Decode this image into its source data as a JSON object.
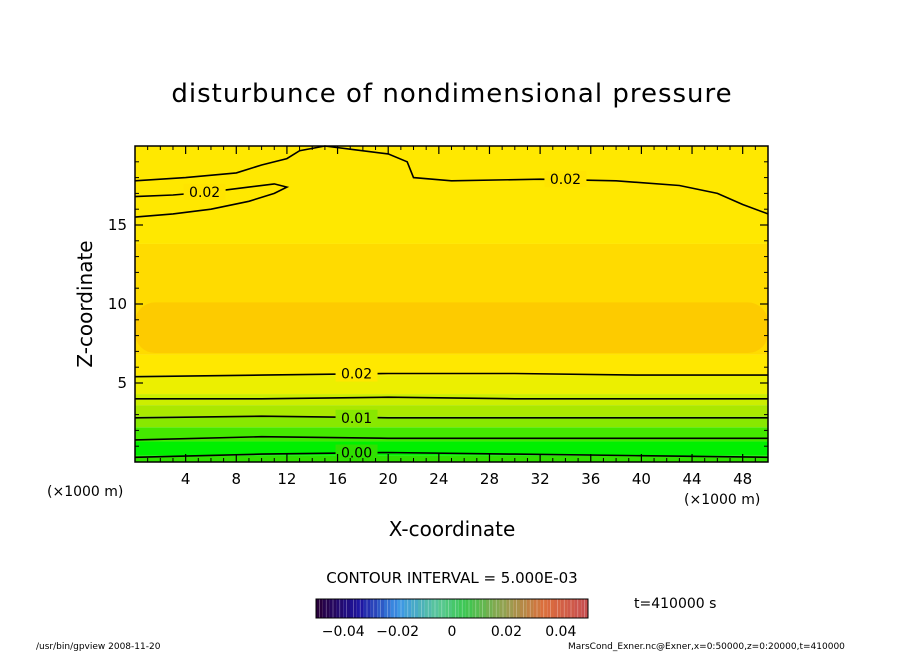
{
  "chart_data": {
    "type": "heatmap",
    "title": "disturbunce of nondimensional pressure",
    "xlabel": "X-coordinate",
    "ylabel": "Z-coordinate",
    "x_unit": "(×1000 m)",
    "y_unit": "(×1000 m)",
    "xlim": [
      0,
      50
    ],
    "ylim": [
      0,
      20
    ],
    "x_ticks": [
      4,
      8,
      12,
      16,
      20,
      24,
      28,
      32,
      36,
      40,
      44,
      48
    ],
    "y_ticks": [
      5,
      10,
      15
    ],
    "grid": false,
    "contour_interval_label": "CONTOUR INTERVAL = 5.000E-03",
    "time_label": "t=410000 s",
    "colorbar": {
      "ticks": [
        -0.04,
        -0.02,
        0,
        0.02,
        0.04
      ],
      "tick_labels": [
        "−0.04",
        "−0.02",
        "0",
        "0.02",
        "0.04"
      ]
    },
    "bands": [
      {
        "z_from": 0,
        "z_to": 0.4,
        "color": "#2fe000"
      },
      {
        "z_from": 0.4,
        "z_to": 1.3,
        "color": "#00f000"
      },
      {
        "z_from": 1.3,
        "z_to": 2.2,
        "color": "#44e800"
      },
      {
        "z_from": 2.2,
        "z_to": 2.9,
        "color": "#88e800"
      },
      {
        "z_from": 2.9,
        "z_to": 3.6,
        "color": "#aae800"
      },
      {
        "z_from": 3.6,
        "z_to": 4.3,
        "color": "#ccee00"
      },
      {
        "z_from": 4.3,
        "z_to": 5.5,
        "color": "#ecef00"
      },
      {
        "z_from": 5.5,
        "z_to": 6.8,
        "color": "#ffe800"
      },
      {
        "z_from": 6.8,
        "z_to": 13.8,
        "color": "#ffdb00"
      },
      {
        "z_from": 13.8,
        "z_to": 20,
        "color": "#ffe800"
      }
    ],
    "core_region": {
      "z_from": 6.9,
      "z_to": 10.1,
      "color": "#fdcb00"
    },
    "contours": [
      {
        "label": "0.02",
        "points": [
          [
            0,
            17.8
          ],
          [
            4,
            18.0
          ],
          [
            8,
            18.3
          ],
          [
            10,
            18.8
          ],
          [
            12,
            19.2
          ],
          [
            13,
            19.7
          ],
          [
            15,
            20.0
          ],
          [
            17,
            19.8
          ],
          [
            20,
            19.5
          ],
          [
            21.5,
            19.0
          ],
          [
            22,
            18.0
          ],
          [
            25,
            17.8
          ],
          [
            32,
            17.9
          ],
          [
            38,
            17.8
          ],
          [
            43,
            17.5
          ],
          [
            46,
            17.0
          ],
          [
            48,
            16.3
          ],
          [
            50,
            15.7
          ]
        ]
      },
      {
        "label": "0.02",
        "points": [
          [
            0,
            15.5
          ],
          [
            3,
            15.7
          ],
          [
            6,
            16.0
          ],
          [
            9,
            16.5
          ],
          [
            11,
            17.0
          ],
          [
            12,
            17.4
          ],
          [
            11,
            17.6
          ],
          [
            9,
            17.4
          ],
          [
            6,
            17.1
          ],
          [
            3,
            16.9
          ],
          [
            0,
            16.8
          ]
        ]
      },
      {
        "label": "0.02",
        "points": [
          [
            0,
            5.4
          ],
          [
            10,
            5.5
          ],
          [
            20,
            5.6
          ],
          [
            30,
            5.6
          ],
          [
            40,
            5.5
          ],
          [
            50,
            5.5
          ]
        ]
      },
      {
        "label": "",
        "points": [
          [
            0,
            4.0
          ],
          [
            10,
            4.0
          ],
          [
            20,
            4.1
          ],
          [
            30,
            4.0
          ],
          [
            40,
            4.0
          ],
          [
            50,
            4.0
          ]
        ]
      },
      {
        "label": "0.01",
        "points": [
          [
            0,
            2.8
          ],
          [
            10,
            2.9
          ],
          [
            20,
            2.8
          ],
          [
            30,
            2.8
          ],
          [
            40,
            2.8
          ],
          [
            50,
            2.8
          ]
        ]
      },
      {
        "label": "",
        "points": [
          [
            0,
            1.4
          ],
          [
            10,
            1.6
          ],
          [
            20,
            1.5
          ],
          [
            30,
            1.5
          ],
          [
            40,
            1.5
          ],
          [
            50,
            1.5
          ]
        ]
      },
      {
        "label": "0.00",
        "points": [
          [
            0,
            0.3
          ],
          [
            10,
            0.5
          ],
          [
            20,
            0.6
          ],
          [
            30,
            0.5
          ],
          [
            40,
            0.4
          ],
          [
            50,
            0.3
          ]
        ]
      }
    ]
  },
  "footer": {
    "left": "/usr/bin/gpview   2008-11-20",
    "right": "MarsCond_Exner.nc@Exner,x=0:50000,z=0:20000,t=410000"
  }
}
